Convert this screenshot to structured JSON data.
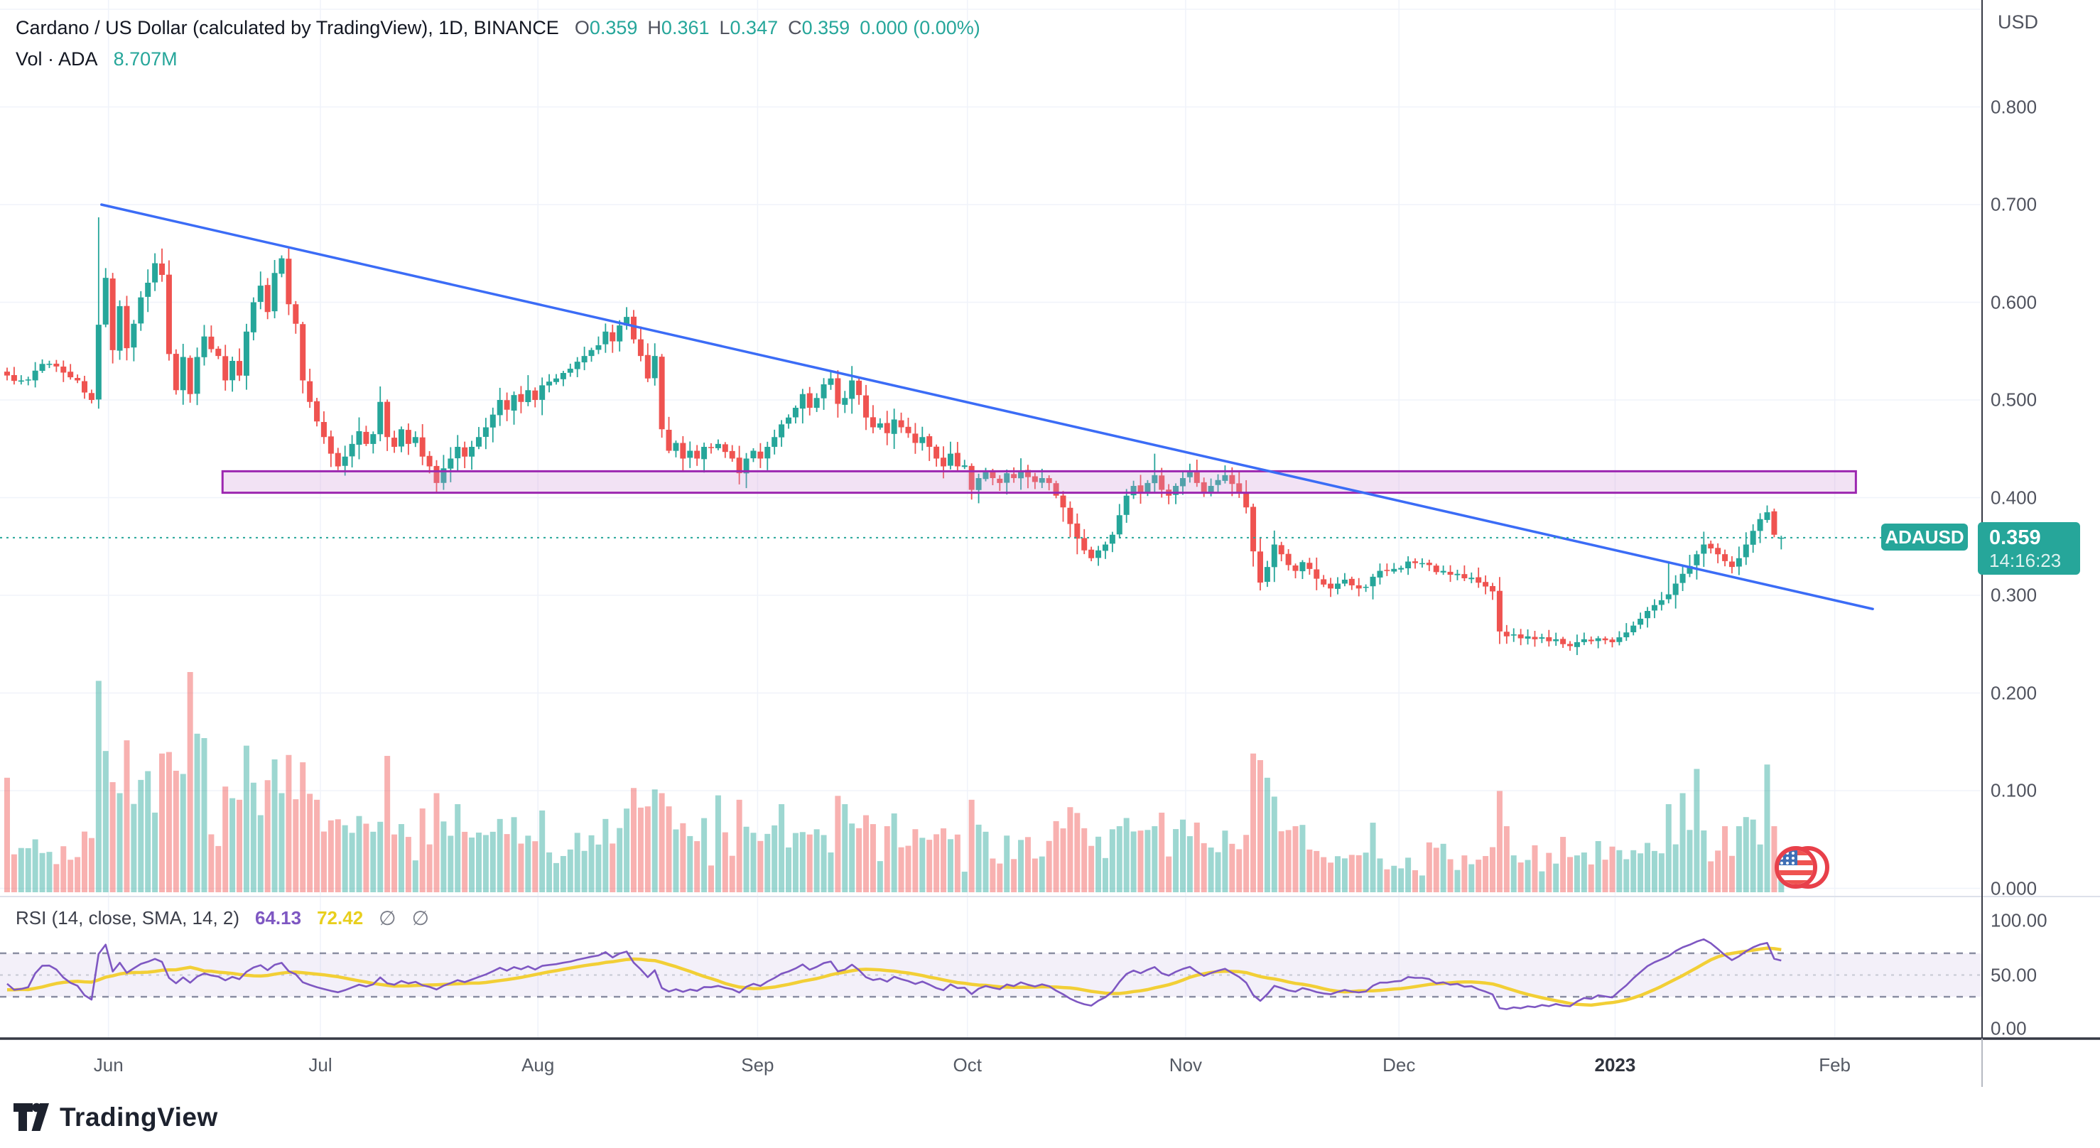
{
  "header": {
    "title": "Cardano / US Dollar (calculated by TradingView), 1D, BINANCE",
    "ohlc": {
      "o_label": "O",
      "o": "0.359",
      "h_label": "H",
      "h": "0.361",
      "l_label": "L",
      "l": "0.347",
      "c_label": "C",
      "c": "0.359",
      "change": "0.000 (0.00%)"
    },
    "volume_label": "Vol · ADA",
    "volume_value": "8.707M"
  },
  "price_axis": {
    "currency": "USD",
    "ticks": [
      {
        "label": "0.800",
        "value": 0.8
      },
      {
        "label": "0.700",
        "value": 0.7
      },
      {
        "label": "0.600",
        "value": 0.6
      },
      {
        "label": "0.500",
        "value": 0.5
      },
      {
        "label": "0.400",
        "value": 0.4
      },
      {
        "label": "0.300",
        "value": 0.3
      },
      {
        "label": "0.200",
        "value": 0.2
      },
      {
        "label": "0.100",
        "value": 0.1
      },
      {
        "label": "0.000",
        "value": 0.0
      }
    ],
    "price_label": {
      "symbol": "ADAUSD",
      "price": "0.359",
      "countdown": "14:16:23"
    }
  },
  "time_axis": {
    "ticks": [
      {
        "label": "Jun",
        "day": 14.4
      },
      {
        "label": "Jul",
        "day": 44.5
      },
      {
        "label": "Aug",
        "day": 75.4
      },
      {
        "label": "Sep",
        "day": 106.6
      },
      {
        "label": "Oct",
        "day": 136.4
      },
      {
        "label": "Nov",
        "day": 167.4
      },
      {
        "label": "Dec",
        "day": 197.7
      },
      {
        "label": "2023",
        "day": 228.4,
        "bold": true
      },
      {
        "label": "Feb",
        "day": 259.6
      }
    ]
  },
  "rsi_panel": {
    "legend": "RSI (14, close, SMA, 14, 2)",
    "rsi_value": "64.13",
    "sma_value": "72.42",
    "empty_set": "∅",
    "axis_ticks": [
      {
        "label": "100.00",
        "value": 100
      },
      {
        "label": "50.00",
        "value": 50
      },
      {
        "label": "0.00",
        "value": 0
      }
    ],
    "levels": {
      "upper": 70,
      "middle": 50,
      "lower": 30
    }
  },
  "branding": {
    "logo_text": "TradingView"
  },
  "colors": {
    "up": "#26a69a",
    "down": "#ef5350",
    "vol_up": "rgba(38,166,154,0.45)",
    "vol_down": "rgba(239,83,80,0.45)",
    "trendline": "#3b6cf6",
    "zone_fill": "rgba(206,147,216,0.27)",
    "zone_border": "#9c27b0",
    "price_line": "#26a69a",
    "label_bg": "#26a69a",
    "rsi_line": "#7e57c2",
    "rsi_sma": "#f2cf36",
    "rsi_band": "rgba(126,87,194,0.09)",
    "grid": "#f0f3fa",
    "axis_line": "#3a3e4a",
    "dashed_level": "#8b8fa3"
  },
  "chart_data": {
    "type": "candlestick",
    "symbol": "ADAUSD",
    "interval": "1D",
    "exchange": "BINANCE",
    "num_candles": 253,
    "price_range_visible": [
      0.0,
      0.9
    ],
    "last_candle": {
      "open": 0.359,
      "high": 0.361,
      "low": 0.347,
      "close": 0.359
    },
    "price_anchors": [
      [
        0,
        0.525
      ],
      [
        2,
        0.52
      ],
      [
        4,
        0.53
      ],
      [
        6,
        0.537
      ],
      [
        8,
        0.528
      ],
      [
        10,
        0.52
      ],
      [
        12,
        0.5
      ],
      [
        13,
        0.577
      ],
      [
        14,
        0.625
      ],
      [
        15,
        0.551
      ],
      [
        16,
        0.596
      ],
      [
        17,
        0.553
      ],
      [
        18,
        0.578
      ],
      [
        19,
        0.605
      ],
      [
        20,
        0.62
      ],
      [
        21,
        0.64
      ],
      [
        22,
        0.628
      ],
      [
        23,
        0.547
      ],
      [
        24,
        0.51
      ],
      [
        25,
        0.544
      ],
      [
        26,
        0.506
      ],
      [
        27,
        0.544
      ],
      [
        28,
        0.565
      ],
      [
        29,
        0.552
      ],
      [
        30,
        0.545
      ],
      [
        31,
        0.52
      ],
      [
        32,
        0.54
      ],
      [
        33,
        0.525
      ],
      [
        34,
        0.57
      ],
      [
        35,
        0.6
      ],
      [
        36,
        0.617
      ],
      [
        37,
        0.59
      ],
      [
        38,
        0.63
      ],
      [
        39,
        0.645
      ],
      [
        40,
        0.598
      ],
      [
        41,
        0.578
      ],
      [
        42,
        0.52
      ],
      [
        43,
        0.498
      ],
      [
        44,
        0.478
      ],
      [
        45,
        0.462
      ],
      [
        46,
        0.445
      ],
      [
        47,
        0.432
      ],
      [
        48,
        0.442
      ],
      [
        49,
        0.455
      ],
      [
        50,
        0.468
      ],
      [
        51,
        0.455
      ],
      [
        52,
        0.465
      ],
      [
        53,
        0.498
      ],
      [
        54,
        0.462
      ],
      [
        55,
        0.452
      ],
      [
        56,
        0.47
      ],
      [
        57,
        0.455
      ],
      [
        58,
        0.462
      ],
      [
        59,
        0.442
      ],
      [
        60,
        0.432
      ],
      [
        61,
        0.415
      ],
      [
        62,
        0.43
      ],
      [
        63,
        0.44
      ],
      [
        64,
        0.452
      ],
      [
        65,
        0.442
      ],
      [
        66,
        0.452
      ],
      [
        67,
        0.462
      ],
      [
        68,
        0.472
      ],
      [
        69,
        0.485
      ],
      [
        70,
        0.5
      ],
      [
        71,
        0.49
      ],
      [
        72,
        0.505
      ],
      [
        73,
        0.498
      ],
      [
        74,
        0.51
      ],
      [
        75,
        0.5
      ],
      [
        76,
        0.515
      ],
      [
        78,
        0.522
      ],
      [
        80,
        0.532
      ],
      [
        82,
        0.545
      ],
      [
        84,
        0.556
      ],
      [
        85,
        0.57
      ],
      [
        86,
        0.56
      ],
      [
        88,
        0.585
      ],
      [
        89,
        0.562
      ],
      [
        90,
        0.545
      ],
      [
        91,
        0.522
      ],
      [
        92,
        0.545
      ],
      [
        93,
        0.47
      ],
      [
        94,
        0.448
      ],
      [
        95,
        0.456
      ],
      [
        96,
        0.44
      ],
      [
        97,
        0.448
      ],
      [
        98,
        0.44
      ],
      [
        99,
        0.452
      ],
      [
        101,
        0.455
      ],
      [
        103,
        0.44
      ],
      [
        104,
        0.425
      ],
      [
        105,
        0.44
      ],
      [
        106,
        0.448
      ],
      [
        107,
        0.44
      ],
      [
        108,
        0.452
      ],
      [
        109,
        0.462
      ],
      [
        110,
        0.475
      ],
      [
        111,
        0.482
      ],
      [
        112,
        0.492
      ],
      [
        113,
        0.506
      ],
      [
        114,
        0.492
      ],
      [
        115,
        0.502
      ],
      [
        116,
        0.516
      ],
      [
        117,
        0.522
      ],
      [
        118,
        0.496
      ],
      [
        119,
        0.502
      ],
      [
        120,
        0.52
      ],
      [
        121,
        0.505
      ],
      [
        122,
        0.482
      ],
      [
        123,
        0.472
      ],
      [
        124,
        0.476
      ],
      [
        125,
        0.466
      ],
      [
        126,
        0.48
      ],
      [
        127,
        0.472
      ],
      [
        128,
        0.466
      ],
      [
        129,
        0.456
      ],
      [
        130,
        0.462
      ],
      [
        131,
        0.452
      ],
      [
        132,
        0.44
      ],
      [
        133,
        0.432
      ],
      [
        134,
        0.445
      ],
      [
        135,
        0.432
      ],
      [
        136,
        0.433
      ],
      [
        137,
        0.408
      ],
      [
        138,
        0.42
      ],
      [
        139,
        0.426
      ],
      [
        140,
        0.42
      ],
      [
        141,
        0.415
      ],
      [
        142,
        0.425
      ],
      [
        143,
        0.42
      ],
      [
        144,
        0.428
      ],
      [
        145,
        0.421
      ],
      [
        146,
        0.416
      ],
      [
        147,
        0.42
      ],
      [
        148,
        0.415
      ],
      [
        149,
        0.402
      ],
      [
        150,
        0.39
      ],
      [
        151,
        0.373
      ],
      [
        152,
        0.358
      ],
      [
        153,
        0.346
      ],
      [
        154,
        0.338
      ],
      [
        155,
        0.346
      ],
      [
        156,
        0.352
      ],
      [
        157,
        0.362
      ],
      [
        158,
        0.382
      ],
      [
        159,
        0.402
      ],
      [
        160,
        0.412
      ],
      [
        161,
        0.405
      ],
      [
        162,
        0.415
      ],
      [
        163,
        0.423
      ],
      [
        164,
        0.408
      ],
      [
        165,
        0.402
      ],
      [
        166,
        0.412
      ],
      [
        167,
        0.42
      ],
      [
        168,
        0.426
      ],
      [
        169,
        0.415
      ],
      [
        170,
        0.405
      ],
      [
        171,
        0.412
      ],
      [
        172,
        0.418
      ],
      [
        173,
        0.423
      ],
      [
        174,
        0.414
      ],
      [
        175,
        0.405
      ],
      [
        176,
        0.39
      ],
      [
        177,
        0.345
      ],
      [
        178,
        0.313
      ],
      [
        179,
        0.329
      ],
      [
        180,
        0.352
      ],
      [
        181,
        0.342
      ],
      [
        182,
        0.331
      ],
      [
        183,
        0.325
      ],
      [
        184,
        0.334
      ],
      [
        185,
        0.327
      ],
      [
        186,
        0.317
      ],
      [
        187,
        0.311
      ],
      [
        188,
        0.307
      ],
      [
        189,
        0.312
      ],
      [
        190,
        0.316
      ],
      [
        192,
        0.307
      ],
      [
        194,
        0.319
      ],
      [
        196,
        0.325
      ],
      [
        198,
        0.328
      ],
      [
        200,
        0.333
      ],
      [
        202,
        0.331
      ],
      [
        204,
        0.325
      ],
      [
        206,
        0.322
      ],
      [
        208,
        0.318
      ],
      [
        210,
        0.309
      ],
      [
        211,
        0.304
      ],
      [
        212,
        0.263
      ],
      [
        213,
        0.258
      ],
      [
        214,
        0.26
      ],
      [
        215,
        0.256
      ],
      [
        216,
        0.258
      ],
      [
        217,
        0.255
      ],
      [
        218,
        0.257
      ],
      [
        219,
        0.253
      ],
      [
        220,
        0.255
      ],
      [
        221,
        0.25
      ],
      [
        222,
        0.248
      ],
      [
        223,
        0.252
      ],
      [
        224,
        0.255
      ],
      [
        225,
        0.253
      ],
      [
        226,
        0.256
      ],
      [
        227,
        0.254
      ],
      [
        228,
        0.252
      ],
      [
        229,
        0.257
      ],
      [
        230,
        0.262
      ],
      [
        231,
        0.269
      ],
      [
        232,
        0.276
      ],
      [
        233,
        0.284
      ],
      [
        234,
        0.29
      ],
      [
        235,
        0.295
      ],
      [
        236,
        0.301
      ],
      [
        237,
        0.312
      ],
      [
        238,
        0.322
      ],
      [
        239,
        0.33
      ],
      [
        240,
        0.342
      ],
      [
        241,
        0.352
      ],
      [
        242,
        0.348
      ],
      [
        243,
        0.342
      ],
      [
        244,
        0.335
      ],
      [
        245,
        0.329
      ],
      [
        246,
        0.338
      ],
      [
        247,
        0.352
      ],
      [
        248,
        0.366
      ],
      [
        249,
        0.378
      ],
      [
        250,
        0.385
      ],
      [
        251,
        0.362
      ],
      [
        252,
        0.359
      ]
    ],
    "wick_overrides": {
      "13": {
        "high": 0.687
      },
      "22": {
        "high": 0.655
      },
      "39": {
        "high": 0.648
      },
      "88": {
        "high": 0.595
      },
      "137": {
        "low": 0.398
      },
      "163": {
        "high": 0.445
      },
      "178": {
        "low": 0.305
      },
      "236": {
        "high": 0.335
      },
      "250": {
        "high": 0.392
      },
      "252": {
        "high": 0.361,
        "low": 0.347
      }
    },
    "volume_spikes": {
      "0": 0.52,
      "13": 0.96,
      "15": 0.5,
      "16": 0.45,
      "20": 0.55,
      "22": 0.63,
      "26": 1.0,
      "27": 0.72,
      "28": 0.7,
      "31": 0.48,
      "33": 0.42,
      "36": 0.35,
      "39": 0.45,
      "44": 0.42,
      "53": 0.32,
      "61": 0.45,
      "64": 0.4,
      "88": 0.38,
      "93": 0.45,
      "101": 0.44,
      "104": 0.42,
      "110": 0.4,
      "119": 0.4,
      "125": 0.3,
      "137": 0.42,
      "152": 0.36,
      "158": 0.3,
      "163": 0.3,
      "167": 0.33,
      "173": 0.28,
      "177": 0.63,
      "178": 0.6,
      "179": 0.52,
      "183": 0.3,
      "193": 0.18,
      "204": 0.22,
      "212": 0.46,
      "213": 0.3,
      "222": 0.16,
      "230": 0.15,
      "236": 0.4,
      "238": 0.45,
      "240": 0.56,
      "244": 0.3,
      "250": 0.58,
      "251": 0.3,
      "252": 0.12
    },
    "trendline": {
      "start": {
        "day": 13.4,
        "price": 0.7
      },
      "end": {
        "day": 265,
        "price": 0.286
      }
    },
    "zone": {
      "price_top": 0.427,
      "price_bottom": 0.405,
      "day_start": 30.6,
      "day_end": 262.6
    },
    "price_line_value": 0.359,
    "rsi": {
      "period": 14,
      "sma_period": 14,
      "last": 64.13,
      "sma_last": 72.42
    },
    "flag_icon": "us-flag-circle"
  }
}
